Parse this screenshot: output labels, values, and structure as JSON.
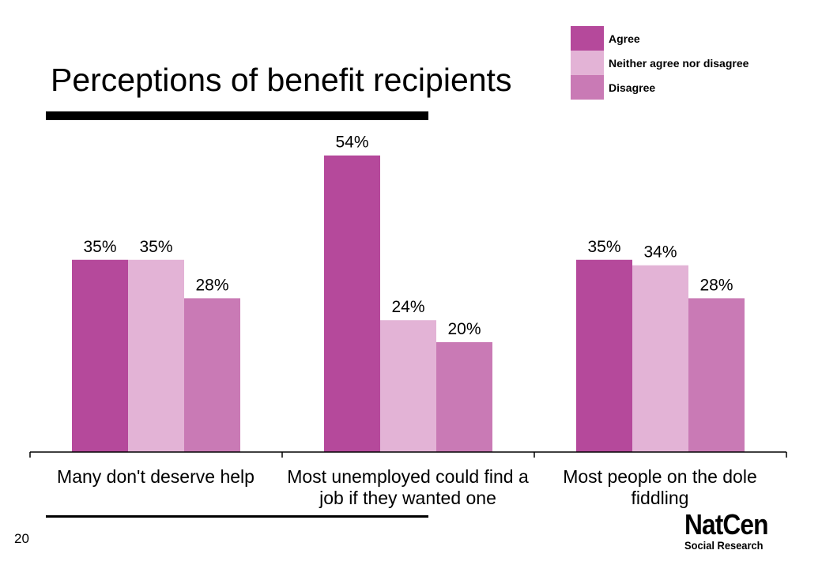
{
  "slide": {
    "title": "Perceptions of benefit recipients",
    "page_number": "20"
  },
  "logo": {
    "name": "NatCen",
    "tagline": "Social Research"
  },
  "legend": [
    {
      "label": "Agree",
      "color": "#b5499b"
    },
    {
      "label": "Neither agree nor disagree",
      "color": "#e3b3d6"
    },
    {
      "label": "Disagree",
      "color": "#c97ab5"
    }
  ],
  "chart_data": {
    "type": "bar",
    "categories": [
      "Many don't deserve help",
      "Most unemployed could find a job if they wanted one",
      "Most people on the dole fiddling"
    ],
    "series": [
      {
        "name": "Agree",
        "values": [
          35,
          54,
          35
        ],
        "color": "#b5499b"
      },
      {
        "name": "Neither agree nor disagree",
        "values": [
          35,
          24,
          34
        ],
        "color": "#e3b3d6"
      },
      {
        "name": "Disagree",
        "values": [
          28,
          20,
          28
        ],
        "color": "#c97ab5"
      }
    ],
    "value_suffix": "%",
    "ylim": [
      0,
      60
    ],
    "grid": false,
    "legend_position": "top-right"
  }
}
